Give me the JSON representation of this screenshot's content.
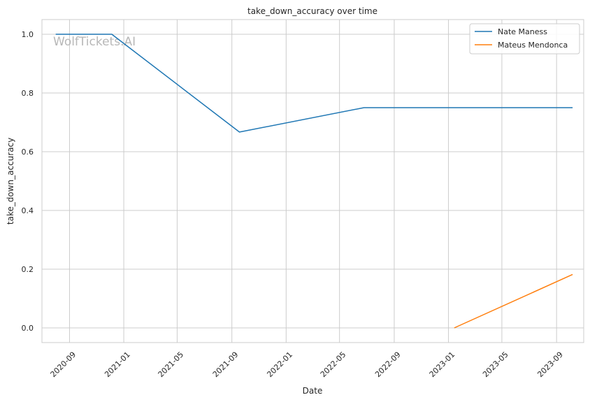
{
  "chart_data": {
    "type": "line",
    "title": "take_down_accuracy over time",
    "xlabel": "Date",
    "ylabel": "take_down_accuracy",
    "watermark": "WolfTickets.AI",
    "xlim": [
      "2020-07-01",
      "2023-11-01"
    ],
    "ylim": [
      -0.05,
      1.05
    ],
    "x_ticks": [
      "2020-09",
      "2021-01",
      "2021-05",
      "2021-09",
      "2022-01",
      "2022-05",
      "2022-09",
      "2023-01",
      "2023-05",
      "2023-09"
    ],
    "y_ticks": [
      "0.0",
      "0.2",
      "0.4",
      "0.6",
      "0.8",
      "1.0"
    ],
    "grid": true,
    "legend": "top-right",
    "series": [
      {
        "name": "Nate Maness",
        "color": "#1f77b4",
        "points": [
          {
            "x": "2020-08-01",
            "y": 1.0
          },
          {
            "x": "2020-12-05",
            "y": 1.0
          },
          {
            "x": "2021-09-18",
            "y": 0.667
          },
          {
            "x": "2022-06-25",
            "y": 0.75
          },
          {
            "x": "2023-10-07",
            "y": 0.75
          }
        ]
      },
      {
        "name": "Mateus Mendonca",
        "color": "#ff7f0e",
        "points": [
          {
            "x": "2023-01-14",
            "y": 0.0
          },
          {
            "x": "2023-10-07",
            "y": 0.182
          }
        ]
      }
    ]
  }
}
